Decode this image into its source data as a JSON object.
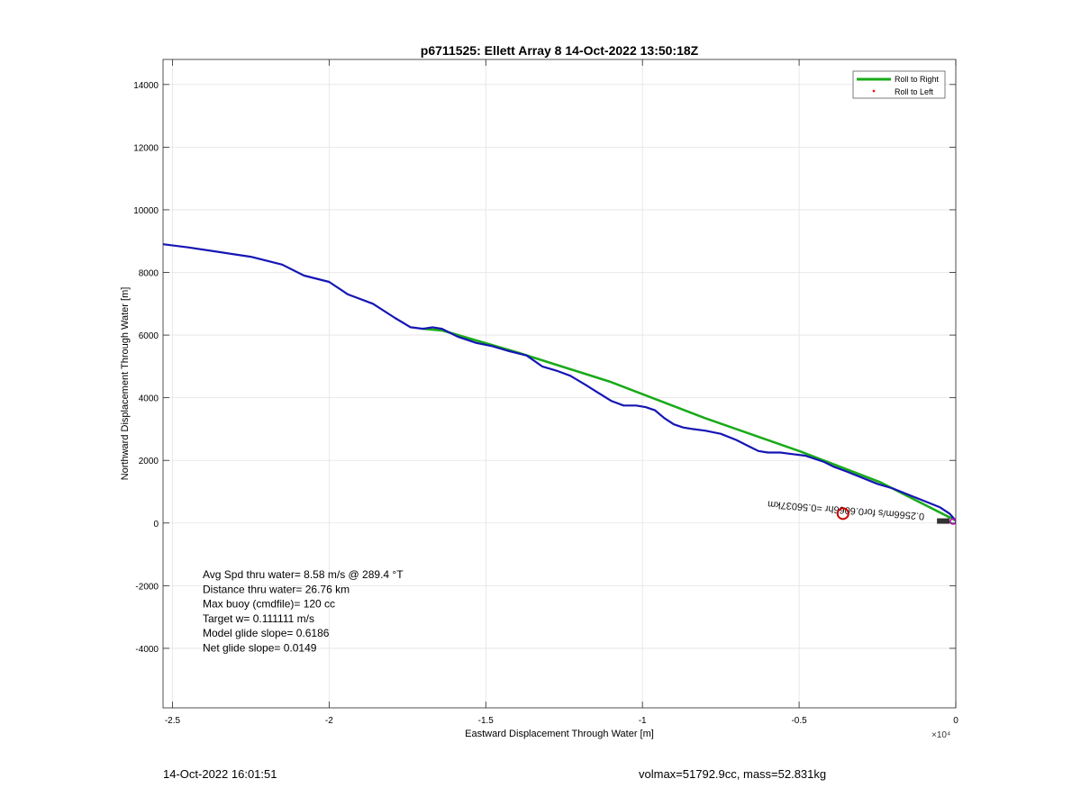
{
  "chart_data": {
    "type": "line",
    "title": "p6711525: Ellett Array 8 14-Oct-2022 13:50:18Z",
    "xlabel": "Eastward Displacement Through Water [m]",
    "ylabel": "Northward Displacement Through Water [m]",
    "x_exponent_label": "×10⁴",
    "xlim": [
      -25300,
      0
    ],
    "ylim": [
      -5900,
      14800
    ],
    "x_ticks": [
      -25000,
      -20000,
      -15000,
      -10000,
      -5000,
      0
    ],
    "x_tick_labels": [
      "-2.5",
      "-2",
      "-1.5",
      "-1",
      "-0.5",
      "0"
    ],
    "y_ticks": [
      -4000,
      -2000,
      0,
      2000,
      4000,
      6000,
      8000,
      10000,
      12000,
      14000
    ],
    "y_tick_labels": [
      "-4000",
      "-2000",
      "0",
      "2000",
      "4000",
      "6000",
      "8000",
      "10000",
      "12000",
      "14000"
    ],
    "grid": true,
    "legend_position": "top-right",
    "series": [
      {
        "name": "Roll to Right",
        "color": "#1aaa1a",
        "x": [
          -17000,
          -16400,
          -14000,
          -11000,
          -8000,
          -5000,
          -2400,
          0
        ],
        "y": [
          6200,
          6150,
          5450,
          4500,
          3350,
          2300,
          1300,
          80
        ]
      },
      {
        "name": "Roll to Left",
        "color": "#ff0000",
        "x": [],
        "y": []
      },
      {
        "name": "",
        "color": "#1515b5",
        "x": [
          -25300,
          -24500,
          -23500,
          -22500,
          -21500,
          -20800,
          -20000,
          -19400,
          -18600,
          -17900,
          -17400,
          -17000,
          -16700,
          -16400,
          -15900,
          -15300,
          -14800,
          -14300,
          -13700,
          -13200,
          -12700,
          -12300,
          -11800,
          -11400,
          -11000,
          -10600,
          -10200,
          -9900,
          -9600,
          -9300,
          -9000,
          -8700,
          -8400,
          -8000,
          -7500,
          -7000,
          -6600,
          -6300,
          -6000,
          -5600,
          -5200,
          -4800,
          -4500,
          -4200,
          -3900,
          -3500,
          -3000,
          -2500,
          -2000,
          -1500,
          -1000,
          -500,
          -200,
          0
        ],
        "y": [
          8900,
          8800,
          8650,
          8500,
          8250,
          7900,
          7700,
          7300,
          7000,
          6550,
          6250,
          6200,
          6250,
          6200,
          5950,
          5750,
          5650,
          5500,
          5350,
          5000,
          4850,
          4700,
          4400,
          4150,
          3900,
          3750,
          3750,
          3700,
          3600,
          3350,
          3150,
          3050,
          3000,
          2950,
          2850,
          2650,
          2450,
          2300,
          2250,
          2250,
          2200,
          2150,
          2050,
          1950,
          1800,
          1650,
          1450,
          1250,
          1100,
          900,
          700,
          500,
          300,
          80
        ]
      }
    ],
    "markers": [
      {
        "name": "red-circle-marker",
        "x": -3600,
        "y": 300,
        "color": "#cc0000"
      },
      {
        "name": "magenta-end-marker",
        "x": 0,
        "y": 50,
        "color": "#cc00cc"
      }
    ],
    "annotation_text": "0.2566m/s for0.6066hr =0.56037km",
    "stats_text": [
      "Avg Spd thru water=  8.58 m/s @ 289.4 °T",
      "Distance thru water= 26.76 km",
      "Max buoy (cmdfile)= 120 cc",
      "Target w= 0.111111 m/s",
      "Model glide slope= 0.6186",
      "Net glide slope= 0.0149"
    ]
  },
  "footer": {
    "timestamp": "14-Oct-2022 16:01:51",
    "vol_mass": "volmax=51792.9cc, mass=52.831kg"
  }
}
